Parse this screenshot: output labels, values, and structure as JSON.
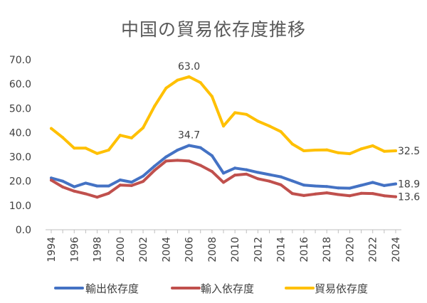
{
  "chart_data": {
    "type": "line",
    "title": "中国の貿易依存度推移",
    "xlabel": "",
    "ylabel": "",
    "ylim": [
      0,
      70
    ],
    "y_ticks": [
      "0.0",
      "10.0",
      "20.0",
      "30.0",
      "40.0",
      "50.0",
      "60.0",
      "70.0"
    ],
    "x_tick_labels": [
      "1994",
      "1996",
      "1998",
      "2000",
      "2002",
      "2004",
      "2006",
      "2008",
      "2010",
      "2012",
      "2014",
      "2016",
      "2018",
      "2020",
      "2022",
      "2024"
    ],
    "x": [
      1994,
      1995,
      1996,
      1997,
      1998,
      1999,
      2000,
      2001,
      2002,
      2003,
      2004,
      2005,
      2006,
      2007,
      2008,
      2009,
      2010,
      2011,
      2012,
      2013,
      2014,
      2015,
      2016,
      2017,
      2018,
      2019,
      2020,
      2021,
      2022,
      2023,
      2024
    ],
    "grid": false,
    "legend_position": "bottom",
    "series": [
      {
        "name": "輸出依存度",
        "color": "#4472C4",
        "values": [
          21.3,
          20.0,
          17.7,
          19.2,
          18.0,
          18.0,
          20.5,
          19.6,
          22.1,
          26.2,
          30.0,
          32.8,
          34.7,
          33.8,
          30.5,
          23.3,
          25.4,
          24.7,
          23.6,
          22.7,
          21.8,
          20.1,
          18.4,
          18.0,
          17.8,
          17.2,
          17.1,
          18.3,
          19.5,
          18.2,
          18.9
        ]
      },
      {
        "name": "輸入依存度",
        "color": "#C0504D",
        "values": [
          20.4,
          17.6,
          15.9,
          14.8,
          13.4,
          15.0,
          18.4,
          18.2,
          19.9,
          24.5,
          28.3,
          28.6,
          28.3,
          26.5,
          24.0,
          19.5,
          22.5,
          22.9,
          21.0,
          20.0,
          18.5,
          14.9,
          14.1,
          14.7,
          15.2,
          14.5,
          14.0,
          15.0,
          14.9,
          14.0,
          13.6
        ]
      },
      {
        "name": "貿易依存度",
        "color": "#FFC000",
        "values": [
          41.7,
          38.0,
          33.6,
          33.6,
          31.4,
          32.8,
          38.9,
          37.8,
          42.0,
          50.9,
          58.3,
          61.6,
          63.0,
          60.6,
          54.9,
          42.7,
          48.2,
          47.5,
          44.7,
          42.7,
          40.4,
          35.3,
          32.5,
          32.8,
          32.9,
          31.7,
          31.3,
          33.3,
          34.6,
          32.3,
          32.5
        ]
      }
    ],
    "data_labels": [
      {
        "series": 2,
        "index": 12,
        "text": "63.0",
        "pos": "above"
      },
      {
        "series": 0,
        "index": 12,
        "text": "34.7",
        "pos": "above"
      },
      {
        "series": 2,
        "index": 30,
        "text": "32.5",
        "pos": "right"
      },
      {
        "series": 0,
        "index": 30,
        "text": "18.9",
        "pos": "right"
      },
      {
        "series": 1,
        "index": 30,
        "text": "13.6",
        "pos": "right"
      }
    ]
  }
}
